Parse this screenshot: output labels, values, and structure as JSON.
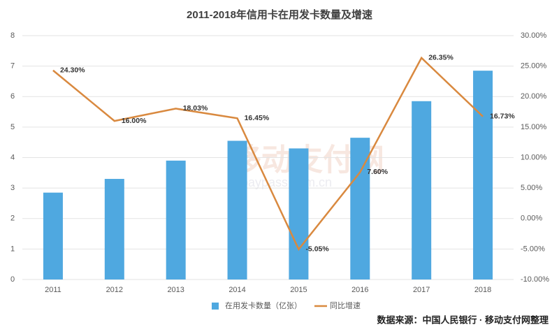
{
  "chart_data": {
    "type": "bar_line",
    "title": "2011-2018年信用卡在用发卡数量及增速",
    "watermark": "移动支付网",
    "watermark_url": "mpaypass.com.cn",
    "source": "数据来源：中国人民银行 · 移动支付网整理",
    "categories": [
      "2011",
      "2012",
      "2013",
      "2014",
      "2015",
      "2016",
      "2017",
      "2018"
    ],
    "series": [
      {
        "name": "在用发卡数量（亿张）",
        "color": "#4fa8e0",
        "values": [
          2.85,
          3.3,
          3.9,
          4.55,
          4.3,
          4.65,
          5.85,
          6.85
        ]
      },
      {
        "name": "同比增速",
        "color": "#d9893f",
        "axis": "y2",
        "values": [
          24.3,
          16.0,
          18.03,
          16.45,
          -5.05,
          7.6,
          26.35,
          16.73
        ],
        "value_labels": [
          "24.30%",
          "16.00%",
          "18.03%",
          "16.45%",
          "-5.05%",
          "7.60%",
          "26.35%",
          "16.73%"
        ]
      }
    ],
    "ylim": [
      0,
      8
    ],
    "yticks": [
      0,
      1,
      2,
      3,
      4,
      5,
      6,
      7,
      8
    ],
    "y2lim": [
      -10,
      30
    ],
    "y2ticks": [
      {
        "value": -10,
        "label": "-10.00%"
      },
      {
        "value": -5,
        "label": "-5.00%"
      },
      {
        "value": 0,
        "label": "0.00%"
      },
      {
        "value": 5,
        "label": "5.00%"
      },
      {
        "value": 10,
        "label": "10.00%"
      },
      {
        "value": 15,
        "label": "15.00%"
      },
      {
        "value": 20,
        "label": "20.00%"
      },
      {
        "value": 25,
        "label": "25.00%"
      },
      {
        "value": 30,
        "label": "30.00%"
      }
    ],
    "grid": true
  }
}
